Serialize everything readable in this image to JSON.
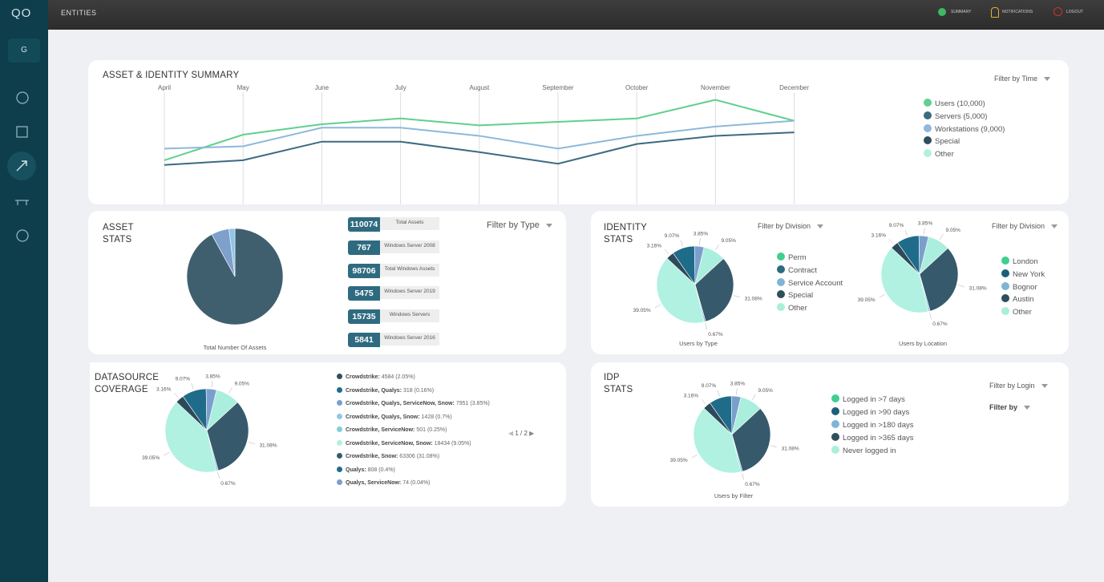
{
  "header": {
    "section": "ENTITIES",
    "links": [
      "SUMMARY",
      "NOTIFICATIONS",
      "LOGOUT"
    ]
  },
  "sidebar": {
    "logo": "QO",
    "avatar": "G"
  },
  "summary": {
    "title": "ASSET & IDENTITY SUMMARY",
    "filter": "Filter by Time",
    "chart": {
      "type": "line",
      "categories": [
        "April",
        "May",
        "June",
        "July",
        "August",
        "September",
        "October",
        "November",
        "December"
      ],
      "ylim": [
        0,
        100
      ],
      "series": [
        {
          "name": "Users (10,000)",
          "color": "#5fd08f",
          "values": [
            38,
            60,
            69,
            74,
            68,
            71,
            74,
            90,
            72
          ]
        },
        {
          "name": "Servers (5,000)",
          "color": "#3c6a82",
          "values": [
            34,
            38,
            54,
            54,
            45,
            35,
            52,
            59,
            62
          ]
        },
        {
          "name": "Workstations (9,000)",
          "color": "#8cb9dc",
          "values": [
            48,
            50,
            66,
            66,
            59,
            48,
            59,
            67,
            72
          ]
        },
        {
          "name": "Special",
          "color": "#2f4f5d",
          "values": [
            null,
            null,
            null,
            null,
            null,
            null,
            null,
            null,
            null
          ]
        },
        {
          "name": "Other",
          "color": "#b3f0df",
          "values": [
            null,
            null,
            null,
            null,
            null,
            null,
            null,
            null,
            null
          ]
        }
      ]
    }
  },
  "asset_stats": {
    "title": "ASSET STATS",
    "filter": "Filter by Type",
    "chart": {
      "type": "pie",
      "values": [
        92,
        6,
        2
      ],
      "colors": [
        "#3f5f6e",
        "#7f9fcd",
        "#8fc6e6"
      ],
      "caption": "Total Number Of Assets"
    },
    "badges": [
      {
        "value": 110074,
        "label": "Total Assets"
      },
      {
        "value": 767,
        "label": "Windows Server 2008"
      },
      {
        "value": 98706,
        "label": "Total Windows Assets"
      },
      {
        "value": 5475,
        "label": "Windows Server 2019"
      },
      {
        "value": 15735,
        "label": "Windows Servers"
      },
      {
        "value": 5841,
        "label": "Windows Server 2016"
      }
    ]
  },
  "identity_stats": {
    "title": "IDENTITY STATS",
    "charts": [
      {
        "type": "pie",
        "filter": "Filter by Division",
        "caption": "Users by Type",
        "values": [
          9.07,
          3.85,
          9.05,
          31.08,
          0.67,
          39.05,
          3.16
        ],
        "value_labels": [
          "9.07%",
          "3.85%",
          "9.05%",
          "31.08%",
          "0.67%",
          "39.05%",
          "3.16%"
        ],
        "colors": [
          "#1f6c8a",
          "#7b9fcd",
          "#aaeedd",
          "#365a6b",
          "#8fc6e6",
          "#b0f1e1",
          "#2d4a5a"
        ],
        "legend": [
          {
            "name": "Perm",
            "color": "#3fcf8e"
          },
          {
            "name": "Contract",
            "color": "#2f6b80"
          },
          {
            "name": "Service Account",
            "color": "#7fb4d6"
          },
          {
            "name": "Special",
            "color": "#2f4f5c"
          },
          {
            "name": "Other",
            "color": "#aaeedb"
          }
        ]
      },
      {
        "type": "pie",
        "filter": "Filter by Division",
        "caption": "Users by Location",
        "values": [
          9.07,
          3.85,
          9.05,
          31.08,
          0.67,
          39.05,
          3.16
        ],
        "value_labels": [
          "9.07%",
          "3.85%",
          "9.05%",
          "31.08%",
          "0.67%",
          "39.05%",
          "3.16%"
        ],
        "colors": [
          "#1f6c8a",
          "#7b9fcd",
          "#aaeedd",
          "#365a6b",
          "#8fc6e6",
          "#b0f1e1",
          "#2d4a5a"
        ],
        "legend": [
          {
            "name": "London",
            "color": "#3fcf8e"
          },
          {
            "name": "New York",
            "color": "#1d5f7a"
          },
          {
            "name": "Bognor",
            "color": "#7fb4d6"
          },
          {
            "name": "Austin",
            "color": "#2f4f5c"
          },
          {
            "name": "Other",
            "color": "#aaeedb"
          }
        ]
      }
    ]
  },
  "datasource": {
    "title": "DATASOURCE COVERAGE",
    "chart": {
      "type": "pie",
      "values": [
        9.07,
        3.85,
        9.05,
        31.08,
        0.67,
        39.05,
        3.16
      ],
      "value_labels": [
        "9.07%",
        "3.85%",
        "9.05%",
        "31.08%",
        "0.67%",
        "39.05%",
        "3.16%"
      ],
      "colors": [
        "#1f6c8a",
        "#7b9fcd",
        "#aaeedd",
        "#365a6b",
        "#8fc6e6",
        "#b0f1e1",
        "#2d4a5a"
      ]
    },
    "list": [
      {
        "name": "Crowdstrike:",
        "detail": "4584 (2.05%)",
        "color": "#2f4f5c"
      },
      {
        "name": "Crowdstrike, Qualys:",
        "detail": "318 (0.16%)",
        "color": "#1f6c8a"
      },
      {
        "name": "Crowdstrike, Qualys, ServiceNow, Snow:",
        "detail": "7951 (3.85%)",
        "color": "#7b9fcd"
      },
      {
        "name": "Crowdstrike, Qualys, Snow:",
        "detail": "1428 (0.7%)",
        "color": "#8fc6e6"
      },
      {
        "name": "Crowdstrike, ServiceNow:",
        "detail": "501 (0.25%)",
        "color": "#7fd0d8"
      },
      {
        "name": "Crowdstrike, ServiceNow, Snow:",
        "detail": "18434 (9.05%)",
        "color": "#b0f1e1"
      },
      {
        "name": "Crowdstrike, Snow:",
        "detail": "63306 (31.08%)",
        "color": "#365a6b"
      },
      {
        "name": "Qualys:",
        "detail": "808 (0.4%)",
        "color": "#1f6c8a"
      },
      {
        "name": "Qualys, ServiceNow:",
        "detail": "74 (0.04%)",
        "color": "#7b9fcd"
      }
    ],
    "pager": "1 / 2"
  },
  "idp_stats": {
    "title": "IDP STATS",
    "filters": [
      "Filter by Login",
      "Filter by"
    ],
    "chart": {
      "type": "pie",
      "caption": "Users by Filter",
      "values": [
        9.07,
        3.85,
        9.05,
        31.08,
        0.67,
        39.05,
        3.16
      ],
      "value_labels": [
        "9.07%",
        "3.85%",
        "9.05%",
        "31.08%",
        "0.67%",
        "39.05%",
        "3.16%"
      ],
      "colors": [
        "#1f6c8a",
        "#7b9fcd",
        "#aaeedd",
        "#365a6b",
        "#8fc6e6",
        "#b0f1e1",
        "#2d4a5a"
      ],
      "legend": [
        {
          "name": "Logged in >7 days",
          "color": "#3fcf8e"
        },
        {
          "name": "Logged in >90 days",
          "color": "#1d5f7a"
        },
        {
          "name": "Logged in >180 days",
          "color": "#7fb4d6"
        },
        {
          "name": "Logged in >365 days",
          "color": "#2f4f5c"
        },
        {
          "name": "Never logged in",
          "color": "#aaeedb"
        }
      ]
    }
  }
}
